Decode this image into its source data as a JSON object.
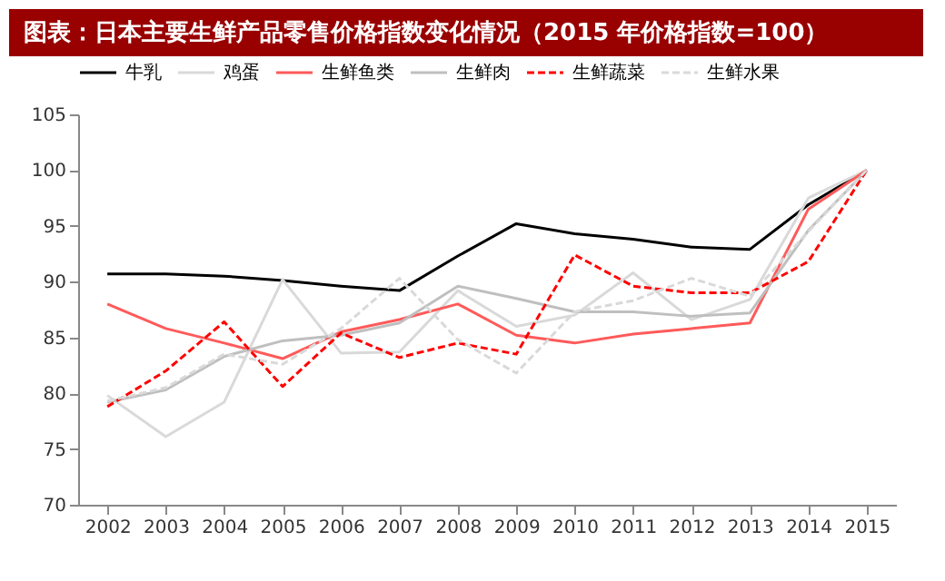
{
  "chart_data": {
    "type": "line",
    "title": "图表：日本主要生鲜产品零售价格指数变化情况（2015 年价格指数=100）",
    "categories": [
      "2002",
      "2003",
      "2004",
      "2005",
      "2006",
      "2007",
      "2008",
      "2009",
      "2010",
      "2011",
      "2012",
      "2013",
      "2014",
      "2015"
    ],
    "series": [
      {
        "name": "牛乳",
        "color": "#000000",
        "line_style": "solid",
        "values": [
          90.7,
          90.7,
          90.5,
          90.1,
          89.6,
          89.2,
          92.3,
          95.2,
          94.3,
          93.8,
          93.1,
          92.9,
          96.9,
          100
        ]
      },
      {
        "name": "鸡蛋",
        "color": "#d9d9d9",
        "line_style": "solid",
        "values": [
          79.8,
          76.1,
          79.2,
          90.2,
          83.6,
          83.7,
          89.2,
          86.0,
          87.0,
          90.8,
          86.6,
          88.4,
          97.5,
          100
        ]
      },
      {
        "name": "生鲜鱼类",
        "color": "#ff5a5a",
        "line_style": "solid",
        "values": [
          88.0,
          85.8,
          84.5,
          83.1,
          85.5,
          86.6,
          88.0,
          85.2,
          84.5,
          85.3,
          85.8,
          86.3,
          96.5,
          100
        ]
      },
      {
        "name": "生鲜肉",
        "color": "#bfbfbf",
        "line_style": "solid",
        "values": [
          79.2,
          80.3,
          83.3,
          84.7,
          85.2,
          86.3,
          89.6,
          88.5,
          87.3,
          87.3,
          86.9,
          87.2,
          94.6,
          100
        ]
      },
      {
        "name": "生鲜蔬菜",
        "color": "#ff0000",
        "line_style": "dashed",
        "values": [
          78.8,
          82.0,
          86.4,
          80.6,
          85.4,
          83.2,
          84.5,
          83.5,
          92.4,
          89.6,
          89.0,
          89.0,
          91.8,
          100
        ]
      },
      {
        "name": "生鲜水果",
        "color": "#d9d9d9",
        "line_style": "dashed",
        "values": [
          79.3,
          80.5,
          83.5,
          82.6,
          85.8,
          90.3,
          84.8,
          81.8,
          87.3,
          88.3,
          90.3,
          88.7,
          94.5,
          100
        ]
      }
    ],
    "ylim": [
      70,
      105
    ],
    "yticks": [
      70,
      75,
      80,
      85,
      90,
      95,
      100,
      105
    ],
    "grid": false,
    "legend": "top",
    "marker": "none"
  }
}
